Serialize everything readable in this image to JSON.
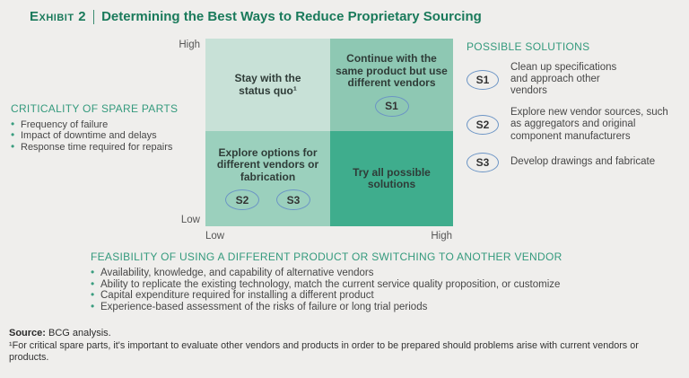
{
  "title": {
    "exhibit_label": "Exhibit 2",
    "text": "Determining the Best Ways to Reduce Proprietary Sourcing"
  },
  "criticality": {
    "heading": "CRITICALITY OF SPARE PARTS",
    "bullets": [
      "Frequency of failure",
      "Impact of downtime and delays",
      "Response time required for repairs"
    ]
  },
  "matrix": {
    "y_axis": {
      "top": "High",
      "bottom": "Low"
    },
    "x_axis": {
      "left": "Low",
      "right": "High"
    },
    "quadrants": {
      "top_left": {
        "label": "Stay with the status quo¹",
        "badges": []
      },
      "top_right": {
        "label": "Continue with the same product but use different vendors",
        "badges": [
          "S1"
        ]
      },
      "bottom_left": {
        "label": "Explore options for different vendors or fabrication",
        "badges": [
          "S2",
          "S3"
        ]
      },
      "bottom_right": {
        "label": "Try all possible solutions",
        "badges": []
      }
    }
  },
  "solutions": {
    "heading": "POSSIBLE SOLUTIONS",
    "items": [
      {
        "id": "S1",
        "text": "Clean up specifications and approach other vendors"
      },
      {
        "id": "S2",
        "text": "Explore new vendor sources, such as aggregators and original component manufacturers"
      },
      {
        "id": "S3",
        "text": "Develop drawings and fabricate"
      }
    ]
  },
  "feasibility": {
    "heading": "FEASIBILITY OF USING A DIFFERENT PRODUCT OR SWITCHING TO ANOTHER VENDOR",
    "bullets": [
      "Availability, knowledge, and capability of alternative vendors",
      "Ability to replicate the existing technology, match the current service quality proposition, or customize",
      "Capital expenditure required for installing a different product",
      "Experience-based assessment of the risks of failure or long trial periods"
    ]
  },
  "footer": {
    "source_label": "Source:",
    "source_text": " BCG analysis.",
    "footnote": "¹For critical spare parts, it's important to evaluate other vendors and products in order to be prepared should problems arise with current vendors or products."
  },
  "colors": {
    "title_green": "#1a7a5b",
    "section_heading_teal": "#349a7d",
    "quadrant_top_left": "#c8e1d7",
    "quadrant_top_right": "#8ec8b3",
    "quadrant_bottom_left": "#9bd0bd",
    "quadrant_bottom_right": "#3fad8d",
    "badge_outline_blue": "#6b94c5",
    "background": "#efeeec",
    "body_text": "#474747"
  }
}
